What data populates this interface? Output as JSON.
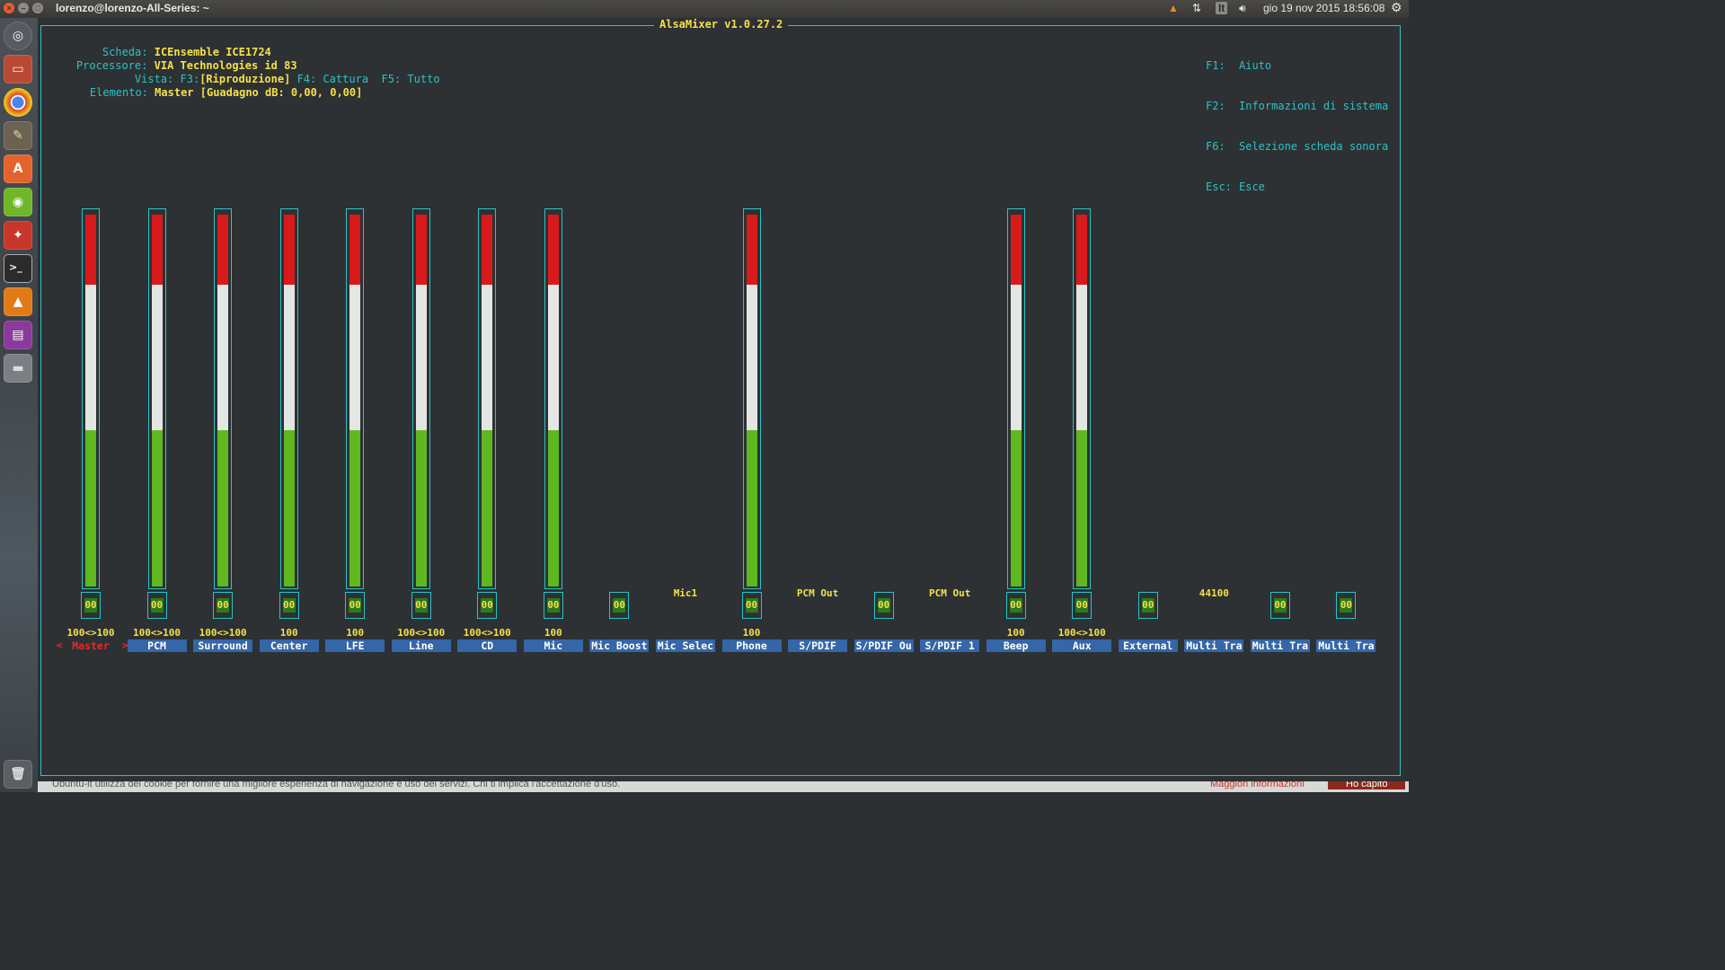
{
  "panel": {
    "window_title": "lorenzo@lorenzo-All-Series: ~",
    "keyboard_layout": "It",
    "datetime": "gio 19 nov 2015 18:56:08"
  },
  "launcher": {
    "icons": [
      "dash-icon",
      "files-icon",
      "chrome-icon",
      "gimp-icon",
      "software-center-icon",
      "nvidia-icon",
      "system-settings-icon",
      "terminal-icon",
      "vlc-icon",
      "workspace-switcher-icon",
      "drive-icon",
      "trash-icon"
    ]
  },
  "app": {
    "title": "AlsaMixer v1.0.27.2",
    "card_label": "Scheda:",
    "card_value": "ICEnsemble ICE1724",
    "chip_label": "Processore:",
    "chip_value": "VIA Technologies id 83",
    "view_label": "Vista:",
    "view_f3_key": "F3:",
    "view_f3": "[Riproduzione]",
    "view_f4": "F4: Cattura",
    "view_f5": "F5: Tutto",
    "item_label": "Elemento:",
    "item_value": "Master [Guadagno dB: 0,00, 0,00]",
    "help": [
      {
        "key": "F1:",
        "text": "Aiuto"
      },
      {
        "key": "F2:",
        "text": "Informazioni di sistema"
      },
      {
        "key": "F6:",
        "text": "Selezione scheda sonora"
      },
      {
        "key": "Esc:",
        "text": "Esce"
      }
    ]
  },
  "channels": [
    {
      "name": "Master",
      "volume": "100<>100",
      "level": 1.0,
      "mute": "00",
      "selected": true
    },
    {
      "name": "PCM",
      "volume": "100<>100",
      "level": 1.0,
      "mute": "00"
    },
    {
      "name": "Surround",
      "volume": "100<>100",
      "level": 1.0,
      "mute": "00"
    },
    {
      "name": "Center",
      "volume": "100",
      "level": 1.0,
      "mute": "00"
    },
    {
      "name": "LFE",
      "volume": "100",
      "level": 1.0,
      "mute": "00"
    },
    {
      "name": "Line",
      "volume": "100<>100",
      "level": 1.0,
      "mute": "00"
    },
    {
      "name": "CD",
      "volume": "100<>100",
      "level": 1.0,
      "mute": "00"
    },
    {
      "name": "Mic",
      "volume": "100",
      "level": 1.0,
      "mute": "00"
    },
    {
      "name": "Mic Boost",
      "mute": "00"
    },
    {
      "name": "Mic Selec",
      "enum": "Mic1"
    },
    {
      "name": "Phone",
      "volume": "100",
      "level": 1.0,
      "mute": "00"
    },
    {
      "name": "S/PDIF",
      "enum": "PCM Out"
    },
    {
      "name": "S/PDIF Ou",
      "mute": "00"
    },
    {
      "name": "S/PDIF 1",
      "enum": "PCM Out"
    },
    {
      "name": "Beep",
      "volume": "100",
      "level": 1.0,
      "mute": "00"
    },
    {
      "name": "Aux",
      "volume": "100<>100",
      "level": 1.0,
      "mute": "00"
    },
    {
      "name": "External",
      "mute": "00"
    },
    {
      "name": "Multi Tra",
      "enum": "44100"
    },
    {
      "name": "Multi Tra",
      "mute": "00"
    },
    {
      "name": "Multi Tra",
      "mute": "00"
    }
  ],
  "colors": {
    "frame": "#2bc3c7",
    "label": "#2bc3c7",
    "value": "#f4e04b",
    "meter_high": "#d81a1a",
    "meter_mid": "#e4e6e4",
    "meter_low": "#5fb820",
    "name_bg": "#3466a8",
    "selected": "#e82a2a"
  },
  "background_strip": {
    "left_text": "Ubuntu-it utilizza dei cookie per fornire una migliore esperienza di navigazione e uso dei servizi. Chi ti implica l'accettazione d'uso.",
    "right_text": "Maggiori informazioni",
    "button_text": "Ho capito"
  }
}
